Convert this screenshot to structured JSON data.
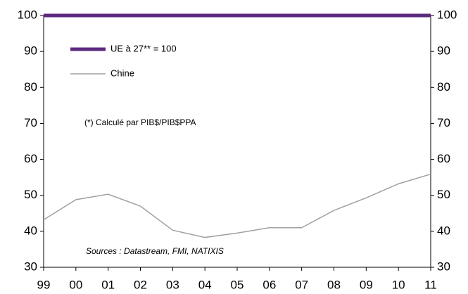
{
  "chart_data": {
    "type": "line",
    "categories": [
      "99",
      "00",
      "01",
      "02",
      "03",
      "04",
      "05",
      "06",
      "07",
      "08",
      "09",
      "10",
      "11"
    ],
    "series": [
      {
        "name": "UE à 27** = 100",
        "color": "#5b2a7e",
        "values": [
          100,
          100,
          100,
          100,
          100,
          100,
          100,
          100,
          100,
          100,
          100,
          100,
          100
        ]
      },
      {
        "name": "Chine",
        "color": "#a0a0a0",
        "values": [
          43.2,
          48.8,
          50.3,
          47,
          40.3,
          38.3,
          39.5,
          41,
          41,
          45.8,
          49.3,
          53.2,
          55.9
        ]
      }
    ],
    "ylim": [
      30,
      100
    ],
    "yticks": [
      30,
      40,
      50,
      60,
      70,
      80,
      90,
      100
    ],
    "y2lim": [
      30,
      100
    ],
    "y2ticks": [
      30,
      40,
      50,
      60,
      70,
      80,
      90,
      100
    ],
    "annotations": [
      "(*) Calculé par PIB$/PIB$PPA",
      "Sources : Datastream, FMI, NATIXIS"
    ],
    "legend": "upper left",
    "grid": false
  }
}
